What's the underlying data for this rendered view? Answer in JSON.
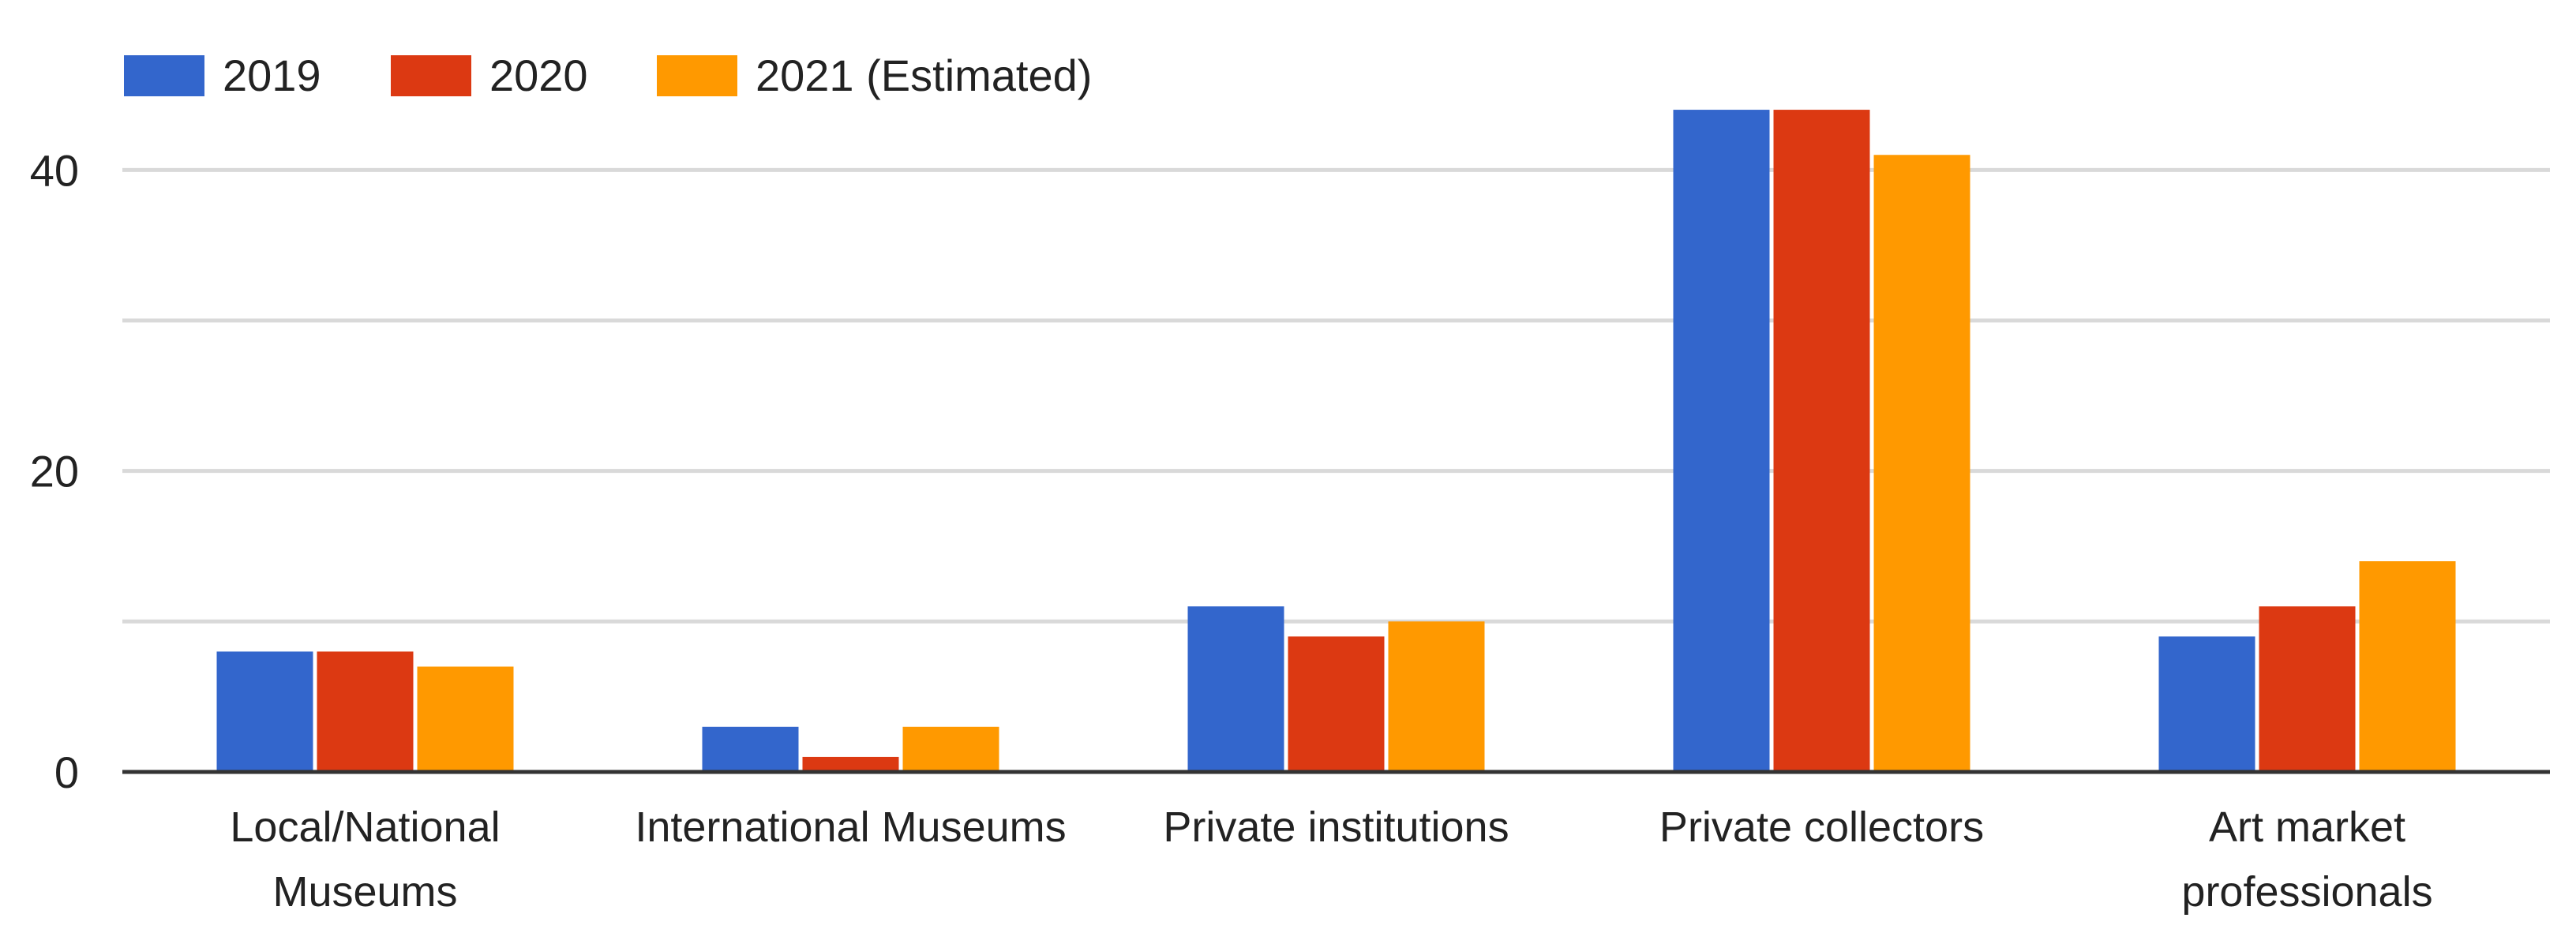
{
  "chart_data": {
    "type": "bar",
    "categories": [
      [
        "Local/National",
        "Museums"
      ],
      [
        "International Museums"
      ],
      [
        "Private institutions"
      ],
      [
        "Private collectors"
      ],
      [
        "Art market",
        "professionals"
      ]
    ],
    "series": [
      {
        "name": "2019",
        "color": "#3366cc",
        "values": [
          8,
          3,
          11,
          44,
          9
        ]
      },
      {
        "name": "2020",
        "color": "#dc3912",
        "values": [
          8,
          1,
          9,
          44,
          11
        ]
      },
      {
        "name": "2021 (Estimated)",
        "color": "#ff9900",
        "values": [
          7,
          3,
          10,
          41,
          14
        ]
      }
    ],
    "y_ticks": [
      0,
      20,
      40
    ],
    "y_minor_gridlines": [
      10,
      30
    ],
    "ylim": [
      0,
      45
    ],
    "grid": true,
    "legend_position": "top-left"
  }
}
